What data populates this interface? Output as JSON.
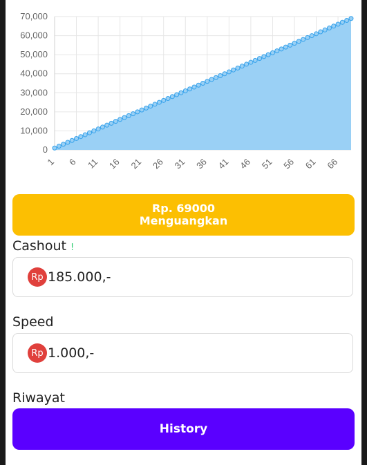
{
  "chart_data": {
    "type": "area",
    "title": "",
    "xlabel": "",
    "ylabel": "",
    "x_start": 1,
    "x_end": 69,
    "x_tick_labels": [
      "1",
      "6",
      "11",
      "16",
      "21",
      "26",
      "31",
      "36",
      "41",
      "46",
      "51",
      "56",
      "61",
      "66"
    ],
    "y_tick_labels": [
      "0",
      "10,000",
      "20,000",
      "30,000",
      "40,000",
      "50,000",
      "60,000",
      "70,000"
    ],
    "ylim": [
      0,
      70000
    ],
    "y_start": 1000,
    "y_step": 1000,
    "grid": true,
    "color_line": "#36a2eb",
    "color_fill": "#9ad0f5"
  },
  "main_button": {
    "line1": "Rp. 69000",
    "line2": "Menguangkan"
  },
  "cashout": {
    "label": "Cashout",
    "indicator": "!",
    "currency": "Rp",
    "value": "185.000,-"
  },
  "speed": {
    "label": "Speed",
    "currency": "Rp",
    "value": "1.000,-"
  },
  "history": {
    "label": "Riwayat",
    "button": "History"
  },
  "colors": {
    "accent_yellow": "#fcbf02",
    "accent_purple": "#5a00ff",
    "badge_red": "#e0403c"
  }
}
